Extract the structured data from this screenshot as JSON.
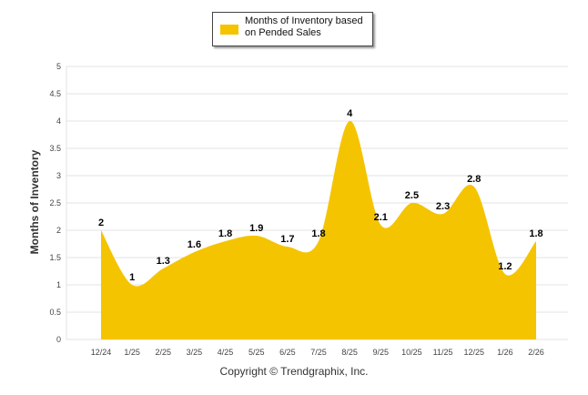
{
  "chart_data": {
    "type": "area",
    "categories": [
      "12/24",
      "1/25",
      "2/25",
      "3/25",
      "4/25",
      "5/25",
      "6/25",
      "7/25",
      "8/25",
      "9/25",
      "10/25",
      "11/25",
      "12/25",
      "1/26",
      "2/26"
    ],
    "series": [
      {
        "name": "Months of Inventory based on Pended Sales",
        "values": [
          2,
          1,
          1.3,
          1.6,
          1.8,
          1.9,
          1.7,
          1.8,
          4,
          2.1,
          2.5,
          2.3,
          2.8,
          1.2,
          1.8
        ]
      }
    ],
    "data_labels": [
      "2",
      "1",
      "1.3",
      "1.6",
      "1.8",
      "1.9",
      "1.7",
      "1.8",
      "4",
      "2.1",
      "2.5",
      "2.3",
      "2.8",
      "1.2",
      "1.8"
    ],
    "ylabel": "Months of Inventory",
    "xlabel": "",
    "ylim": [
      0,
      5
    ],
    "yticks": [
      "0",
      "0.5",
      "1",
      "1.5",
      "2",
      "2.5",
      "3",
      "3.5",
      "4",
      "4.5",
      "5"
    ],
    "grid": true,
    "legend_position": "top-center",
    "color": "#f5c400"
  },
  "legend": {
    "label": "Months of Inventory based on Pended Sales"
  },
  "footer": {
    "copyright": "Copyright © Trendgraphix, Inc."
  }
}
